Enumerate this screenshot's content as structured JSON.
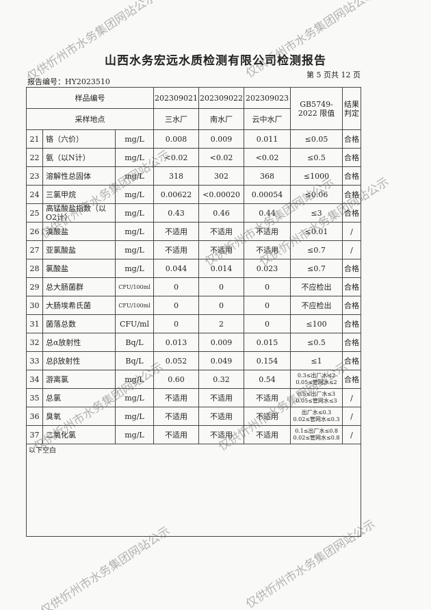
{
  "header": {
    "title": "山西水务宏远水质检测有限公司检测报告",
    "report_no": "报告编号：HY2023510",
    "page": "第 5 页共 12 页"
  },
  "table": {
    "head_row1": [
      "样品编号",
      "202309021",
      "202309022",
      "202309023",
      "GB5749-2022 限值",
      "结果判定"
    ],
    "head_row2": [
      "采样地点",
      "三水厂",
      "南水厂",
      "云中水厂"
    ],
    "rows": [
      [
        "21",
        "铬（六价）",
        "mg/L",
        "0.008",
        "0.009",
        "0.011",
        "≤0.05",
        "合格"
      ],
      [
        "22",
        "氨（以N计）",
        "mg/L",
        "<0.02",
        "<0.02",
        "<0.02",
        "≤0.5",
        "合格"
      ],
      [
        "23",
        "溶解性总固体",
        "mg/L",
        "318",
        "302",
        "368",
        "≤1000",
        "合格"
      ],
      [
        "24",
        "三氯甲烷",
        "mg/L",
        "0.00622",
        "<0.00020",
        "0.00054",
        "≤0.06",
        "合格"
      ],
      [
        "25",
        "高锰酸盐指数（以O2计）",
        "mg/L",
        "0.43",
        "0.46",
        "0.44",
        "≤3",
        "合格"
      ],
      [
        "26",
        "溴酸盐",
        "mg/L",
        "不适用",
        "不适用",
        "不适用",
        "≤0.01",
        "/"
      ],
      [
        "27",
        "亚氯酸盐",
        "mg/L",
        "不适用",
        "不适用",
        "不适用",
        "≤0.7",
        "/"
      ],
      [
        "28",
        "氯酸盐",
        "mg/L",
        "0.044",
        "0.014",
        "0.023",
        "≤0.7",
        "合格"
      ],
      [
        "29",
        "总大肠菌群",
        "CFU/100ml",
        "0",
        "0",
        "0",
        "不应检出",
        "合格"
      ],
      [
        "30",
        "大肠埃希氏菌",
        "CFU/100ml",
        "0",
        "0",
        "0",
        "不应检出",
        "合格"
      ],
      [
        "31",
        "菌落总数",
        "CFU/ml",
        "0",
        "2",
        "0",
        "≤100",
        "合格"
      ],
      [
        "32",
        "总α放射性",
        "Bq/L",
        "0.013",
        "0.009",
        "0.015",
        "≤0.5",
        "合格"
      ],
      [
        "33",
        "总β放射性",
        "Bq/L",
        "0.052",
        "0.049",
        "0.154",
        "≤1",
        "合格"
      ],
      [
        "34",
        "游离氯",
        "mg/L",
        "0.60",
        "0.32",
        "0.54",
        [
          "0.3≤出厂水≤2",
          "0.05≤管网水≤2"
        ],
        "合格"
      ],
      [
        "35",
        "总氯",
        "mg/L",
        "不适用",
        "不适用",
        "不适用",
        [
          "0.5≤出厂水≤3",
          "0.05≤管网水≤3"
        ],
        "/"
      ],
      [
        "36",
        "臭氧",
        "mg/L",
        "不适用",
        "不适用",
        "不适用",
        [
          "出厂水≤0.3",
          "0.02≤管网水≤0.3"
        ],
        "/"
      ],
      [
        "37",
        "二氧化氯",
        "mg/L",
        "不适用",
        "不适用",
        "不适用",
        [
          "0.1≤出厂水≤0.8",
          "0.02≤管网水≤0.8"
        ],
        "/"
      ]
    ],
    "footer_note": "以下空白"
  },
  "watermark": "仅供忻州市水务集团网站公示"
}
